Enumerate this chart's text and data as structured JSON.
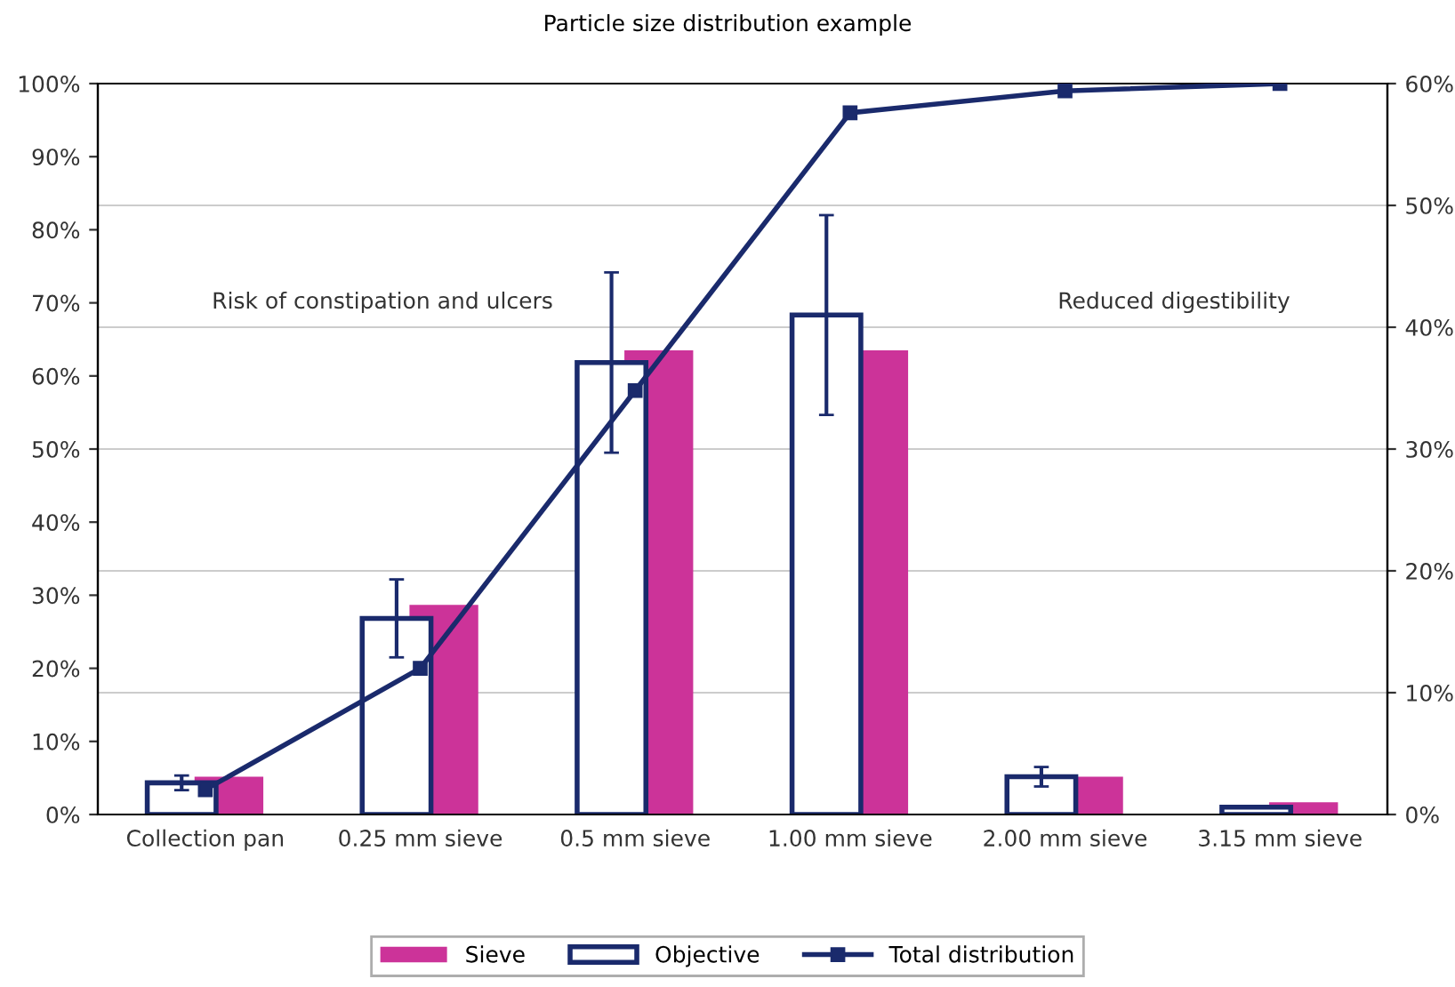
{
  "chart_data": {
    "type": "bar",
    "title": "Particle size distribution example",
    "categories": [
      "Collection pan",
      "0.25 mm sieve",
      "0.5 mm sieve",
      "1.00 mm sieve",
      "2.00 mm sieve",
      "3.15 mm sieve"
    ],
    "series": [
      {
        "name": "Sieve",
        "axis": "y2",
        "color": "#cc3399",
        "values": [
          3.1,
          17.2,
          38.1,
          38.1,
          3.1,
          1.0
        ]
      },
      {
        "name": "Objective",
        "axis": "y2",
        "color": "#1a2a6c",
        "values": [
          2.6,
          16.1,
          37.1,
          41.0,
          3.1,
          0.6
        ],
        "errors": [
          0.6,
          3.2,
          7.4,
          8.2,
          0.8,
          null
        ]
      },
      {
        "name": "Total distribution",
        "type": "line",
        "color": "#1a2a6c",
        "marker": "square",
        "values": [
          3.4,
          20,
          58,
          96,
          99,
          100
        ]
      }
    ],
    "ylim": [
      0,
      100
    ],
    "yticks": [
      {
        "value": 0,
        "label": "0%"
      },
      {
        "value": 10,
        "label": "10%"
      },
      {
        "value": 20,
        "label": "20%"
      },
      {
        "value": 30,
        "label": "30%"
      },
      {
        "value": 40,
        "label": "40%"
      },
      {
        "value": 50,
        "label": "50%"
      },
      {
        "value": 60,
        "label": "60%"
      },
      {
        "value": 70,
        "label": "70%"
      },
      {
        "value": 80,
        "label": "80%"
      },
      {
        "value": 90,
        "label": "90%"
      },
      {
        "value": 100,
        "label": "100%"
      }
    ],
    "y2lim": [
      0,
      60
    ],
    "y2ticks": [
      {
        "value": 0,
        "label": "0%"
      },
      {
        "value": 10,
        "label": "10%"
      },
      {
        "value": 20,
        "label": "20%"
      },
      {
        "value": 30,
        "label": "30%"
      },
      {
        "value": 40,
        "label": "40%"
      },
      {
        "value": 50,
        "label": "50%"
      },
      {
        "value": 60,
        "label": "60%"
      }
    ],
    "annotations": [
      "Risk of constipation and ulcers",
      "Reduced digestibility"
    ],
    "grid": "y",
    "legend": "bottom"
  }
}
